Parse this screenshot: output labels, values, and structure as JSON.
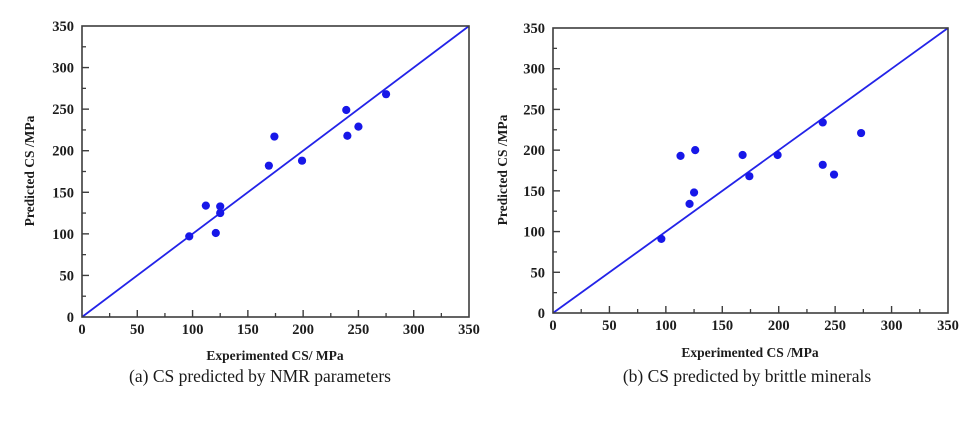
{
  "figure": {
    "background": "#ffffff",
    "text_color": "#1c1c1c",
    "frame_color": "#3d3d3d"
  },
  "chart_data": [
    {
      "type": "scatter",
      "caption": "(a) CS predicted by NMR parameters",
      "xlabel": "Experimented CS/ MPa",
      "ylabel": "Predicted CS /MPa",
      "xlim": [
        0,
        350
      ],
      "ylim": [
        0,
        350
      ],
      "x_ticks": [
        0,
        50,
        100,
        150,
        200,
        250,
        300,
        350
      ],
      "y_ticks": [
        0,
        50,
        100,
        150,
        200,
        250,
        300,
        350
      ],
      "minor_tick_step": 25,
      "grid": false,
      "legend": false,
      "marker_color": "#1717e8",
      "line_color": "#2323e8",
      "reference_line": {
        "type": "y=x",
        "from": [
          0,
          0
        ],
        "to": [
          350,
          350
        ]
      },
      "points": [
        [
          97,
          97
        ],
        [
          112,
          134
        ],
        [
          121,
          101
        ],
        [
          125,
          133
        ],
        [
          125,
          125
        ],
        [
          169,
          182
        ],
        [
          174,
          217
        ],
        [
          199,
          188
        ],
        [
          239,
          249
        ],
        [
          240,
          218
        ],
        [
          250,
          229
        ],
        [
          275,
          268
        ]
      ]
    },
    {
      "type": "scatter",
      "caption": "(b) CS predicted by brittle minerals",
      "xlabel": "Experimented CS /MPa",
      "ylabel": "Predicted CS /MPa",
      "xlim": [
        0,
        350
      ],
      "ylim": [
        0,
        350
      ],
      "x_ticks": [
        0,
        50,
        100,
        150,
        200,
        250,
        300,
        350
      ],
      "y_ticks": [
        0,
        50,
        100,
        150,
        200,
        250,
        300,
        350
      ],
      "minor_tick_step": 25,
      "grid": false,
      "legend": false,
      "marker_color": "#1717e8",
      "line_color": "#2323e8",
      "reference_line": {
        "type": "y=x",
        "from": [
          0,
          0
        ],
        "to": [
          350,
          350
        ]
      },
      "points": [
        [
          96,
          91
        ],
        [
          113,
          193
        ],
        [
          126,
          200
        ],
        [
          121,
          134
        ],
        [
          125,
          148
        ],
        [
          168,
          194
        ],
        [
          174,
          168
        ],
        [
          199,
          194
        ],
        [
          239,
          234
        ],
        [
          239,
          182
        ],
        [
          249,
          170
        ],
        [
          273,
          221
        ]
      ]
    }
  ]
}
